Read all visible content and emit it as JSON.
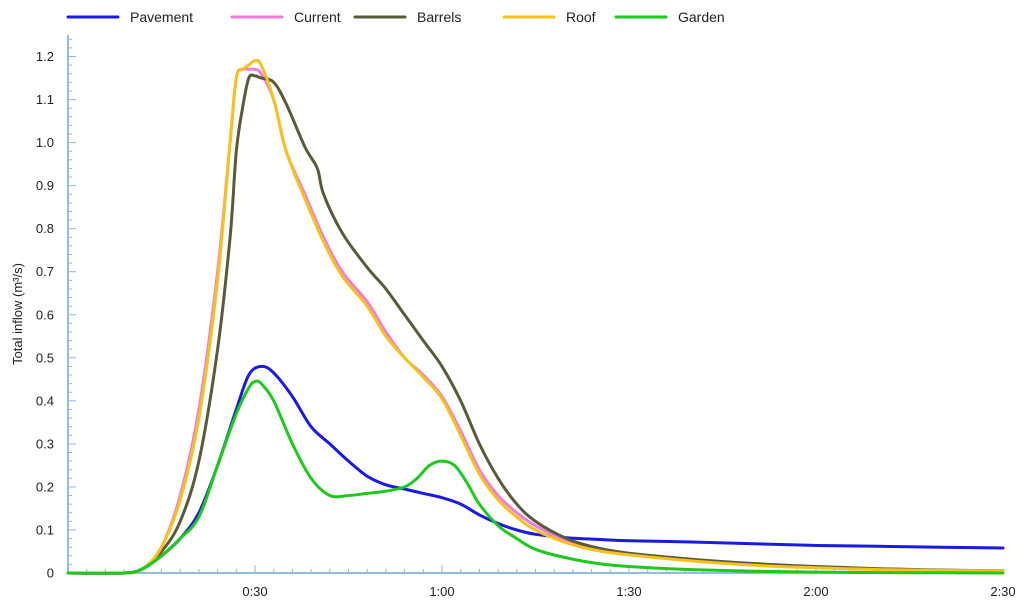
{
  "chart_data": {
    "type": "line",
    "title": "",
    "xlabel": "",
    "ylabel": "Total inflow (m³/s)",
    "x_unit": "hours:minutes",
    "xlim": [
      "0:00",
      "2:30"
    ],
    "ylim": [
      0,
      1.25
    ],
    "x_ticks": [
      "0:30",
      "1:00",
      "1:30",
      "2:00",
      "2:30"
    ],
    "y_ticks": [
      "0",
      "0.1",
      "0.2",
      "0.3",
      "0.4",
      "0.5",
      "0.6",
      "0.7",
      "0.8",
      "0.9",
      "1.0",
      "1.1",
      "1.2"
    ],
    "grid": false,
    "legend_position": "top",
    "series": [
      {
        "name": "Pavement",
        "color": "#1a1ae0",
        "x": [
          "0:00",
          "0:09",
          "0:12",
          "0:15",
          "0:18",
          "0:21",
          "0:24",
          "0:27",
          "0:29",
          "0:31",
          "0:33",
          "0:36",
          "0:39",
          "0:42",
          "0:45",
          "0:48",
          "0:51",
          "0:54",
          "0:57",
          "1:00",
          "1:03",
          "1:06",
          "1:09",
          "1:12",
          "1:15",
          "1:20",
          "1:25",
          "1:30",
          "1:40",
          "1:50",
          "2:00",
          "2:10",
          "2:20",
          "2:30"
        ],
        "values": [
          0,
          0,
          0.01,
          0.04,
          0.08,
          0.14,
          0.25,
          0.38,
          0.46,
          0.48,
          0.465,
          0.41,
          0.34,
          0.3,
          0.26,
          0.225,
          0.205,
          0.195,
          0.185,
          0.175,
          0.16,
          0.135,
          0.115,
          0.1,
          0.09,
          0.082,
          0.078,
          0.075,
          0.072,
          0.068,
          0.064,
          0.062,
          0.06,
          0.058
        ]
      },
      {
        "name": "Current",
        "color": "#f07ce0",
        "x": [
          "0:00",
          "0:09",
          "0:12",
          "0:15",
          "0:18",
          "0:21",
          "0:24",
          "0:26",
          "0:27",
          "0:28",
          "0:29",
          "0:30",
          "0:31",
          "0:33",
          "0:35",
          "0:38",
          "0:41",
          "0:44",
          "0:48",
          "0:51",
          "0:54",
          "0:57",
          "1:00",
          "1:03",
          "1:06",
          "1:09",
          "1:12",
          "1:15",
          "1:20",
          "1:25",
          "1:30",
          "1:40",
          "1:50",
          "2:00",
          "2:10",
          "2:20",
          "2:30"
        ],
        "values": [
          0,
          0,
          0.01,
          0.06,
          0.18,
          0.38,
          0.7,
          1.0,
          1.15,
          1.17,
          1.17,
          1.17,
          1.16,
          1.1,
          0.98,
          0.88,
          0.78,
          0.7,
          0.63,
          0.56,
          0.5,
          0.46,
          0.41,
          0.33,
          0.24,
          0.18,
          0.14,
          0.11,
          0.075,
          0.055,
          0.045,
          0.03,
          0.02,
          0.013,
          0.009,
          0.006,
          0.005
        ]
      },
      {
        "name": "Barrels",
        "color": "#5a5a3a",
        "x": [
          "0:00",
          "0:09",
          "0:12",
          "0:15",
          "0:18",
          "0:21",
          "0:24",
          "0:26",
          "0:27",
          "0:28",
          "0:29",
          "0:30",
          "0:31",
          "0:33",
          "0:35",
          "0:38",
          "0:40",
          "0:41",
          "0:44",
          "0:48",
          "0:51",
          "0:54",
          "0:57",
          "1:00",
          "1:03",
          "1:06",
          "1:09",
          "1:12",
          "1:15",
          "1:20",
          "1:25",
          "1:30",
          "1:40",
          "1:50",
          "2:00",
          "2:10",
          "2:20",
          "2:30"
        ],
        "values": [
          0,
          0,
          0.01,
          0.05,
          0.12,
          0.26,
          0.52,
          0.78,
          0.98,
          1.08,
          1.15,
          1.155,
          1.15,
          1.14,
          1.09,
          0.99,
          0.94,
          0.88,
          0.79,
          0.71,
          0.66,
          0.6,
          0.54,
          0.48,
          0.4,
          0.3,
          0.22,
          0.16,
          0.12,
          0.08,
          0.058,
          0.046,
          0.032,
          0.022,
          0.015,
          0.01,
          0.007,
          0.005
        ]
      },
      {
        "name": "Roof",
        "color": "#f5c21c",
        "x": [
          "0:00",
          "0:09",
          "0:12",
          "0:15",
          "0:18",
          "0:21",
          "0:24",
          "0:26",
          "0:27",
          "0:28",
          "0:29",
          "0:30",
          "0:31",
          "0:33",
          "0:35",
          "0:38",
          "0:41",
          "0:44",
          "0:48",
          "0:51",
          "0:54",
          "0:57",
          "1:00",
          "1:03",
          "1:06",
          "1:09",
          "1:12",
          "1:15",
          "1:20",
          "1:25",
          "1:30",
          "1:40",
          "1:50",
          "2:00",
          "2:10",
          "2:20",
          "2:30"
        ],
        "values": [
          0,
          0,
          0.01,
          0.06,
          0.17,
          0.36,
          0.68,
          1.0,
          1.15,
          1.17,
          1.18,
          1.19,
          1.18,
          1.1,
          0.98,
          0.87,
          0.77,
          0.69,
          0.62,
          0.55,
          0.5,
          0.455,
          0.405,
          0.32,
          0.23,
          0.17,
          0.13,
          0.1,
          0.07,
          0.052,
          0.042,
          0.028,
          0.018,
          0.012,
          0.008,
          0.006,
          0.005
        ]
      },
      {
        "name": "Garden",
        "color": "#1ec81e",
        "x": [
          "0:00",
          "0:09",
          "0:12",
          "0:15",
          "0:18",
          "0:21",
          "0:24",
          "0:27",
          "0:29",
          "0:30",
          "0:31",
          "0:33",
          "0:36",
          "0:39",
          "0:42",
          "0:45",
          "0:48",
          "0:51",
          "0:54",
          "0:56",
          "0:58",
          "1:00",
          "1:02",
          "1:04",
          "1:06",
          "1:09",
          "1:12",
          "1:15",
          "1:20",
          "1:25",
          "1:30",
          "1:40",
          "1:50",
          "2:00",
          "2:10",
          "2:20",
          "2:30"
        ],
        "values": [
          0,
          0,
          0.01,
          0.04,
          0.08,
          0.13,
          0.25,
          0.37,
          0.43,
          0.445,
          0.44,
          0.4,
          0.3,
          0.22,
          0.18,
          0.18,
          0.185,
          0.19,
          0.2,
          0.22,
          0.25,
          0.26,
          0.25,
          0.21,
          0.16,
          0.11,
          0.08,
          0.055,
          0.035,
          0.022,
          0.015,
          0.008,
          0.004,
          0.002,
          0.001,
          0.0005,
          0
        ]
      }
    ]
  }
}
